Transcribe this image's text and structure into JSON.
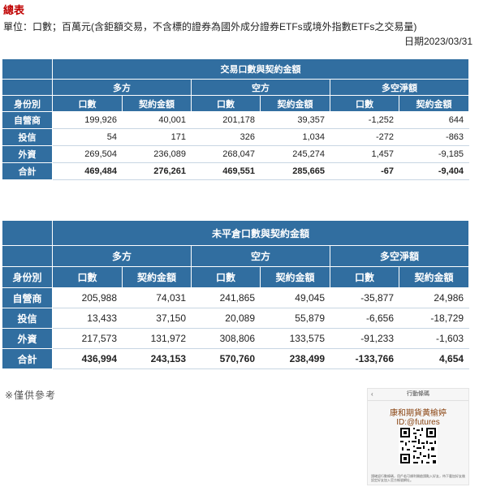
{
  "header": {
    "title": "總表",
    "unit_note": "單位：口數；百萬元(含鉅額交易，不含標的證券為國外成分證券ETFs或境外指數ETFs之交易量)",
    "date": "日期2023/03/31"
  },
  "table1": {
    "title": "交易口數與契約金額",
    "groups": [
      "多方",
      "空方",
      "多空淨額"
    ],
    "row_header": "身份別",
    "columns": [
      "口數",
      "契約金額",
      "口數",
      "契約金額",
      "口數",
      "契約金額"
    ],
    "rows": [
      {
        "label": "自營商",
        "values": [
          "199,926",
          "40,001",
          "201,178",
          "39,357",
          "-1,252",
          "644"
        ]
      },
      {
        "label": "投信",
        "values": [
          "54",
          "171",
          "326",
          "1,034",
          "-272",
          "-863"
        ]
      },
      {
        "label": "外資",
        "values": [
          "269,504",
          "236,089",
          "268,047",
          "245,274",
          "1,457",
          "-9,185"
        ]
      },
      {
        "label": "合計",
        "values": [
          "469,484",
          "276,261",
          "469,551",
          "285,665",
          "-67",
          "-9,404"
        ]
      }
    ]
  },
  "table2": {
    "title": "未平倉口數與契約金額",
    "groups": [
      "多方",
      "空方",
      "多空淨額"
    ],
    "row_header": "身份別",
    "columns": [
      "口數",
      "契約金額",
      "口數",
      "契約金額",
      "口數",
      "契約金額"
    ],
    "rows": [
      {
        "label": "自營商",
        "values": [
          "205,988",
          "74,031",
          "241,865",
          "49,045",
          "-35,877",
          "24,986"
        ]
      },
      {
        "label": "投信",
        "values": [
          "13,433",
          "37,150",
          "20,089",
          "55,879",
          "-6,656",
          "-18,729"
        ]
      },
      {
        "label": "外資",
        "values": [
          "217,573",
          "131,972",
          "308,806",
          "133,575",
          "-91,233",
          "-1,603"
        ]
      },
      {
        "label": "合計",
        "values": [
          "436,994",
          "243,153",
          "570,760",
          "238,499",
          "-133,766",
          "4,654"
        ]
      }
    ]
  },
  "footer_note": "※僅供參考",
  "card": {
    "header": "行動條碼",
    "back_icon": "chevron-left-icon",
    "name": "康和期貨黃榆婷",
    "id": "ID:@futures",
    "footer": "請確認行動條碼，用戶若可順利開啟請點入好友，待下載加好友後設定好友加入官方帳號網址。"
  },
  "colors": {
    "header_bg": "#316ea0",
    "title_red": "#c00000",
    "card_name": "#8b4513"
  }
}
